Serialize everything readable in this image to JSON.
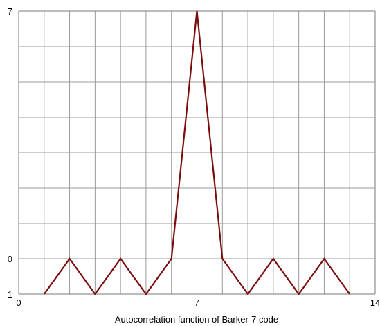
{
  "chart_data": {
    "type": "line",
    "title": "",
    "xlabel": "Autocorrelation function of Barker-7 code",
    "ylabel": "",
    "xlim": [
      0,
      14
    ],
    "ylim": [
      -1,
      7
    ],
    "grid": true,
    "x_ticks": [
      {
        "value": 0,
        "label": "0"
      },
      {
        "value": 7,
        "label": "7"
      },
      {
        "value": 14,
        "label": "14"
      }
    ],
    "y_ticks": [
      {
        "value": -1,
        "label": "-1"
      },
      {
        "value": 0,
        "label": "0"
      },
      {
        "value": 7,
        "label": "7"
      }
    ],
    "grid_x": [
      0,
      1,
      2,
      3,
      4,
      5,
      6,
      7,
      8,
      9,
      10,
      11,
      12,
      13,
      14
    ],
    "grid_y": [
      -1,
      0,
      1,
      2,
      3,
      4,
      5,
      6,
      7
    ],
    "series": [
      {
        "color": "#7a0c0c",
        "x": [
          1,
          2,
          3,
          4,
          5,
          6,
          7,
          8,
          9,
          10,
          11,
          12,
          13
        ],
        "y": [
          -1,
          0,
          -1,
          0,
          -1,
          0,
          7,
          0,
          -1,
          0,
          -1,
          0,
          -1
        ]
      }
    ],
    "colors": {
      "grid": "#9a9a9a",
      "axis": "#7a7a7a",
      "line": "#7a0c0c"
    }
  }
}
